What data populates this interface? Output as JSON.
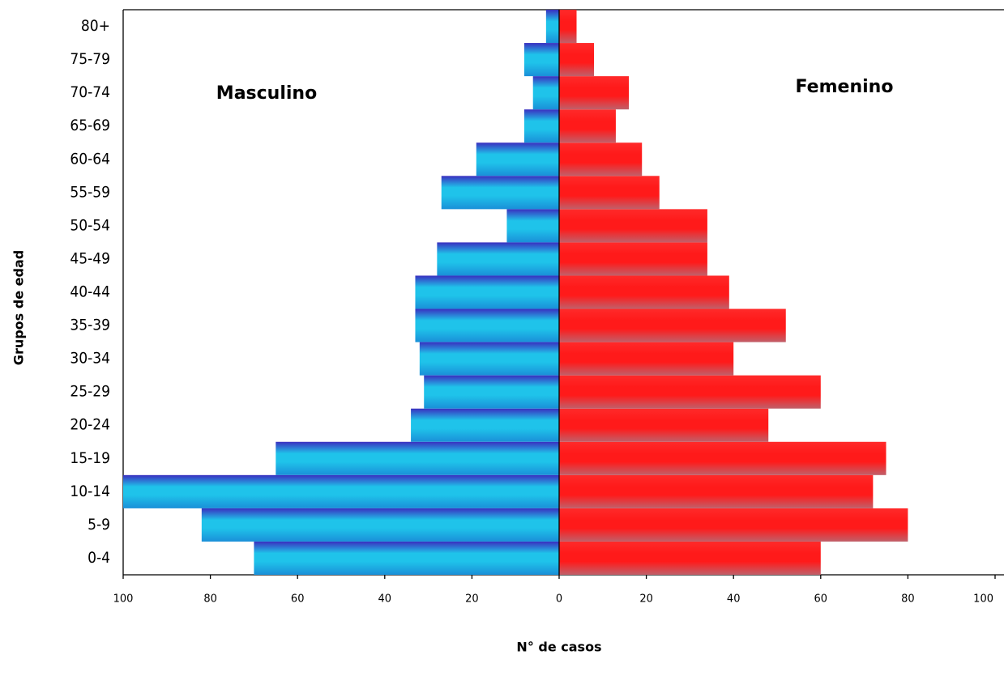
{
  "chart_data": {
    "type": "pyramid",
    "y_label": "Grupos de edad",
    "x_label": "N° de casos",
    "categories": [
      "0-4",
      "5-9",
      "10-14",
      "15-19",
      "20-24",
      "25-29",
      "30-34",
      "35-39",
      "40-44",
      "45-49",
      "50-54",
      "55-59",
      "60-64",
      "65-69",
      "70-74",
      "75-79",
      "80+"
    ],
    "series": [
      {
        "name": "Masculino",
        "color": "#1fc3ea",
        "values": [
          70,
          82,
          100,
          65,
          34,
          31,
          32,
          33,
          33,
          28,
          12,
          27,
          19,
          8,
          6,
          8,
          3
        ]
      },
      {
        "name": "Femenino",
        "color": "#ff1a1a",
        "values": [
          60,
          80,
          72,
          75,
          48,
          60,
          40,
          52,
          39,
          34,
          34,
          23,
          19,
          13,
          16,
          8,
          4
        ]
      }
    ],
    "xlim": [
      -100,
      100
    ],
    "xticks": [
      {
        "value": -100,
        "label": "100"
      },
      {
        "value": -80,
        "label": "80"
      },
      {
        "value": -60,
        "label": "60"
      },
      {
        "value": -40,
        "label": "40"
      },
      {
        "value": -20,
        "label": "20"
      },
      0,
      20,
      40,
      60,
      80,
      100
    ],
    "left_tick_color": "#e00000"
  }
}
